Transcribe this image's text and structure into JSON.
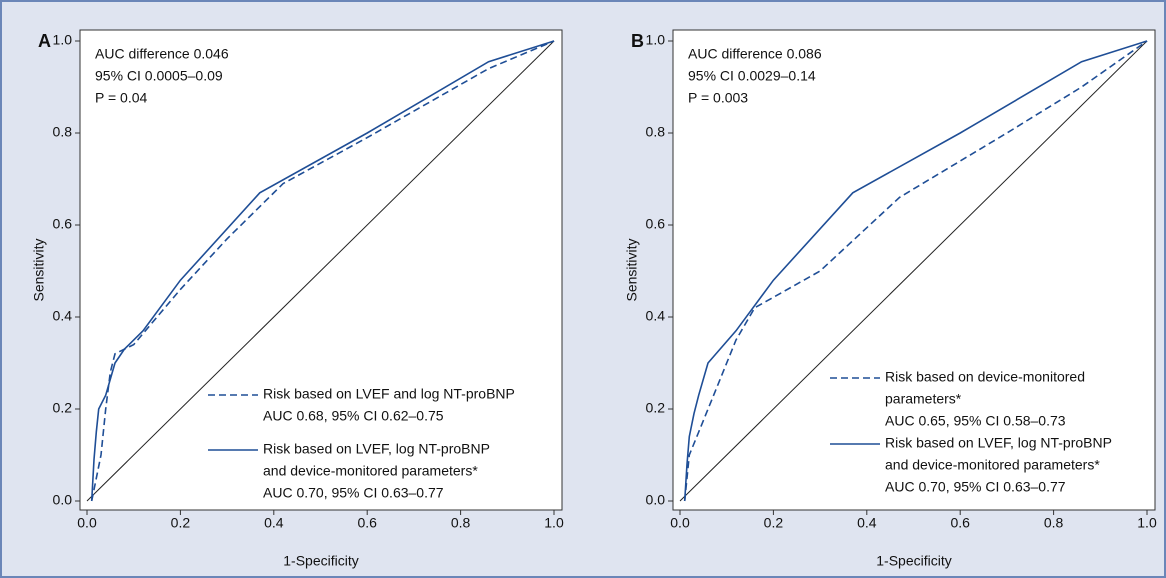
{
  "chart_data": [
    {
      "type": "line",
      "panel_label": "A",
      "annotation": [
        "AUC difference 0.046",
        "95% CI 0.0005–0.09",
        "P = 0.04"
      ],
      "x_label": "1-Specificity",
      "y_label": "Sensitivity",
      "xlim": [
        0,
        1
      ],
      "ylim": [
        0,
        1
      ],
      "xticks": [
        {
          "value": 0,
          "label": "0.0"
        },
        0.2,
        0.4,
        0.6,
        0.8,
        {
          "value": 1,
          "label": "1.0"
        }
      ],
      "yticks": [
        {
          "value": 0,
          "label": "0.0"
        },
        0.2,
        0.4,
        0.6,
        0.8,
        {
          "value": 1,
          "label": "1.0"
        }
      ],
      "series": [
        {
          "name": [
            "Risk based on LVEF and log NT-proBNP"
          ],
          "auc_label": "AUC 0.68, 95% CI 0.62–0.75",
          "color": "#1f4e96",
          "style": "dashed",
          "x": [
            0.01,
            0.03,
            0.04,
            0.05,
            0.06,
            0.1,
            0.2,
            0.3,
            0.42,
            0.6,
            0.86,
            1
          ],
          "values": [
            0,
            0.1,
            0.2,
            0.28,
            0.32,
            0.34,
            0.46,
            0.57,
            0.69,
            0.79,
            0.94,
            1
          ]
        },
        {
          "name": [
            "Risk based on LVEF, log NT-proBNP",
            "and device-monitored parameters*"
          ],
          "auc_label": "AUC 0.70, 95% CI 0.63–0.77",
          "color": "#1f4e96",
          "style": "solid",
          "x": [
            0.01,
            0.015,
            0.02,
            0.025,
            0.04,
            0.06,
            0.08,
            0.12,
            0.2,
            0.37,
            0.6,
            0.86,
            1
          ],
          "values": [
            0,
            0.09,
            0.15,
            0.2,
            0.23,
            0.3,
            0.33,
            0.37,
            0.48,
            0.67,
            0.8,
            0.955,
            1
          ]
        }
      ]
    },
    {
      "type": "line",
      "panel_label": "B",
      "annotation": [
        "AUC difference 0.086",
        "95% CI 0.0029–0.14",
        "P = 0.003"
      ],
      "x_label": "1-Specificity",
      "y_label": "Sensitivity",
      "xlim": [
        0,
        1
      ],
      "ylim": [
        0,
        1
      ],
      "xticks": [
        {
          "value": 0,
          "label": "0.0"
        },
        0.2,
        0.4,
        0.6,
        0.8,
        {
          "value": 1,
          "label": "1.0"
        }
      ],
      "yticks": [
        {
          "value": 0,
          "label": "0.0"
        },
        0.2,
        0.4,
        0.6,
        0.8,
        {
          "value": 1,
          "label": "1.0"
        }
      ],
      "series": [
        {
          "name": [
            "Risk based on device-monitored",
            "parameters*"
          ],
          "auc_label": "AUC 0.65, 95% CI 0.58–0.73",
          "color": "#1f4e96",
          "style": "dashed",
          "x": [
            0.01,
            0.02,
            0.04,
            0.08,
            0.12,
            0.16,
            0.3,
            0.47,
            0.7,
            0.86,
            1
          ],
          "values": [
            0,
            0.1,
            0.15,
            0.25,
            0.35,
            0.42,
            0.5,
            0.66,
            0.8,
            0.9,
            1
          ]
        },
        {
          "name": [
            "Risk based on LVEF, log NT-proBNP",
            "and device-monitored parameters*"
          ],
          "auc_label": "AUC 0.70, 95% CI 0.63–0.77",
          "color": "#1f4e96",
          "style": "solid",
          "x": [
            0.01,
            0.015,
            0.02,
            0.03,
            0.04,
            0.06,
            0.12,
            0.2,
            0.37,
            0.6,
            0.86,
            1
          ],
          "values": [
            0,
            0.08,
            0.14,
            0.19,
            0.23,
            0.3,
            0.37,
            0.48,
            0.67,
            0.8,
            0.955,
            1
          ]
        }
      ]
    }
  ]
}
